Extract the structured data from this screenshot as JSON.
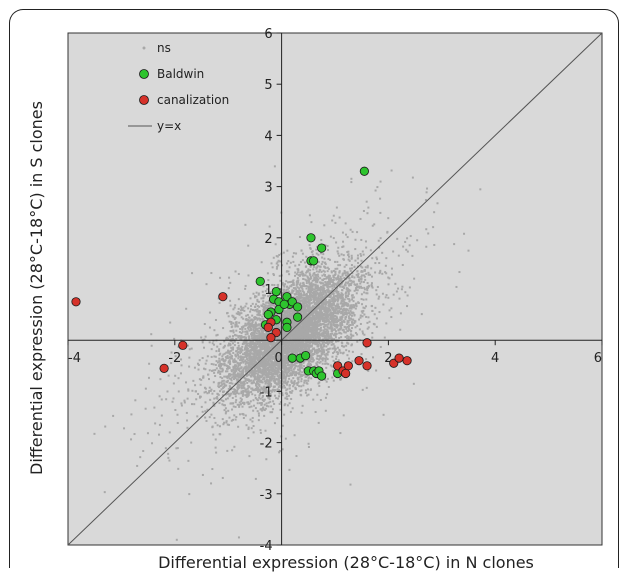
{
  "chart_data": {
    "type": "scatter",
    "title": "",
    "xlabel": "Differential expression (28°C-18°C) in N clones",
    "ylabel": "Differential expression (28°C-18°C) in S clones",
    "xlim": [
      -4,
      6
    ],
    "ylim": [
      -4,
      6
    ],
    "x_ticks": [
      "-4",
      "-2",
      "0",
      "2",
      "4",
      "6"
    ],
    "y_ticks": [
      "-4",
      "-3",
      "-2",
      "-1",
      "0",
      "1",
      "2",
      "3",
      "4",
      "5",
      "6"
    ],
    "grid": false,
    "background": "#d9d9d9",
    "legend": {
      "position": "top-left",
      "entries": [
        "ns",
        "Baldwin",
        "canalization",
        "y=x"
      ]
    },
    "series": [
      {
        "name": "ns",
        "color": "#a8a8a8",
        "note_points": "dense cloud of several thousand grey points centered near (0,0), elongated along y=x",
        "x": [],
        "y": []
      },
      {
        "name": "Baldwin",
        "color": "#2ec42e",
        "x": [
          -0.4,
          -0.1,
          0.1,
          -0.15,
          -0.05,
          0.15,
          -0.2,
          -0.05,
          0.05,
          0.2,
          0.3,
          -0.25,
          -0.1,
          0.1,
          0.3,
          -0.3,
          0.1,
          0.2,
          0.35,
          0.45,
          0.5,
          0.6,
          0.65,
          0.7,
          0.75,
          1.05,
          0.55,
          0.55,
          0.75,
          0.6,
          1.55
        ],
        "y": [
          1.15,
          0.95,
          0.85,
          0.8,
          0.75,
          0.7,
          0.55,
          0.6,
          0.7,
          0.75,
          0.65,
          0.5,
          0.4,
          0.35,
          0.45,
          0.3,
          0.25,
          -0.35,
          -0.35,
          -0.3,
          -0.6,
          -0.6,
          -0.65,
          -0.6,
          -0.7,
          -0.65,
          2.0,
          1.55,
          1.8,
          1.55,
          3.3
        ],
        "note_x": "x values correspond to points listed in order; last point is the outlier near (1.55, 3.3)"
      },
      {
        "name": "canalization",
        "color": "#d6322a",
        "x": [
          -3.85,
          -2.2,
          -1.85,
          -1.1,
          -0.2,
          -0.25,
          -0.1,
          -0.2,
          1.05,
          1.15,
          1.25,
          1.45,
          1.6,
          1.6,
          2.1,
          2.2,
          2.35,
          1.2
        ],
        "y": [
          0.75,
          -0.55,
          -0.1,
          0.85,
          0.35,
          0.25,
          0.15,
          0.05,
          -0.5,
          -0.6,
          -0.5,
          -0.4,
          -0.05,
          -0.5,
          -0.45,
          -0.35,
          -0.4,
          -0.65
        ]
      },
      {
        "name": "y=x",
        "color": "#555555",
        "type": "line",
        "x": [
          -4,
          6
        ],
        "y": [
          -4,
          6
        ]
      }
    ]
  }
}
